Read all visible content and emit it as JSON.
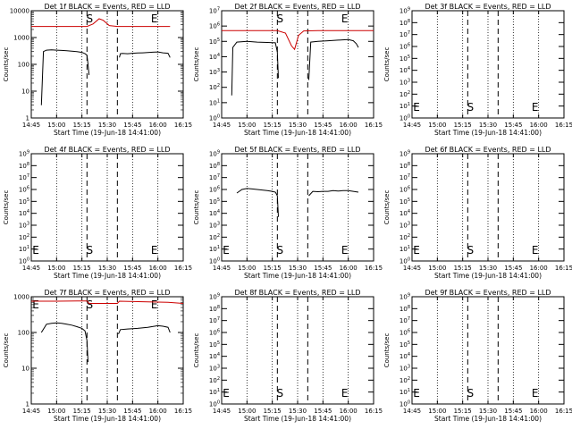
{
  "x_ticks": [
    "14:45",
    "15:00",
    "15:15",
    "15:30",
    "15:45",
    "16:00",
    "16:15"
  ],
  "x_label": "Start Time (19-Jun-18 14:41:00)",
  "y_label": "Counts/sec",
  "marker_S": "S",
  "marker_E": "E",
  "chart_data": [
    {
      "type": "line",
      "title": "Det 1f BLACK = Events, RED = LLD",
      "ylog": true,
      "ylim": [
        1,
        10000
      ],
      "yticks": [
        "1",
        "10",
        "100",
        "1000",
        "10000"
      ],
      "dashed_x": [
        15.3,
        15.6
      ],
      "markers": {
        "S": 15.3,
        "E": 16.0
      },
      "series": [
        {
          "name": "Events",
          "color": "#000000",
          "points": [
            [
              14.85,
              3
            ],
            [
              14.87,
              300
            ],
            [
              14.9,
              340
            ],
            [
              14.95,
              350
            ],
            [
              15.0,
              340
            ],
            [
              15.05,
              330
            ],
            [
              15.1,
              320
            ],
            [
              15.15,
              310
            ],
            [
              15.2,
              300
            ],
            [
              15.25,
              280
            ],
            [
              15.28,
              250
            ],
            [
              15.3,
              220
            ],
            [
              15.31,
              100
            ],
            [
              15.32,
              40
            ],
            null,
            [
              15.62,
              180
            ],
            [
              15.63,
              250
            ],
            [
              15.65,
              255
            ],
            [
              15.7,
              250
            ],
            [
              15.75,
              260
            ],
            [
              15.8,
              265
            ],
            [
              15.85,
              270
            ],
            [
              15.9,
              275
            ],
            [
              15.95,
              285
            ],
            [
              16.0,
              290
            ],
            [
              16.05,
              270
            ],
            [
              16.1,
              260
            ],
            [
              16.12,
              180
            ]
          ]
        },
        {
          "name": "LLD",
          "color": "#cc0000",
          "points": [
            [
              14.75,
              2600
            ],
            [
              15.0,
              2600
            ],
            [
              15.2,
              2600
            ],
            [
              15.3,
              2600
            ],
            [
              15.36,
              3200
            ],
            [
              15.42,
              5000
            ],
            [
              15.46,
              4400
            ],
            [
              15.52,
              2800
            ],
            [
              15.6,
              2600
            ],
            [
              15.8,
              2600
            ],
            [
              16.0,
              2600
            ],
            [
              16.12,
              2600
            ]
          ]
        }
      ]
    },
    {
      "type": "line",
      "title": "Det 2f BLACK = Events, RED = LLD",
      "ylog": true,
      "ylim": [
        1,
        10000000
      ],
      "yticks": [
        "10^0",
        "10^1",
        "10^2",
        "10^3",
        "10^4",
        "10^5",
        "10^6",
        "10^7"
      ],
      "dashed_x": [
        15.3,
        15.6
      ],
      "markers": {
        "S": 15.3,
        "E": 16.0
      },
      "series": [
        {
          "name": "Events",
          "color": "#000000",
          "points": [
            [
              14.85,
              30
            ],
            [
              14.86,
              40000
            ],
            [
              14.9,
              90000
            ],
            [
              15.0,
              100000
            ],
            [
              15.1,
              90000
            ],
            [
              15.2,
              85000
            ],
            [
              15.28,
              80000
            ],
            [
              15.3,
              20000
            ],
            [
              15.31,
              400
            ],
            null,
            [
              15.61,
              300
            ],
            [
              15.63,
              90000
            ],
            [
              15.7,
              100000
            ],
            [
              15.8,
              110000
            ],
            [
              15.9,
              120000
            ],
            [
              16.0,
              130000
            ],
            [
              16.05,
              110000
            ],
            [
              16.08,
              70000
            ],
            [
              16.1,
              40000
            ]
          ]
        },
        {
          "name": "LLD",
          "color": "#cc0000",
          "points": [
            [
              14.75,
              500000
            ],
            [
              15.0,
              500000
            ],
            [
              15.3,
              500000
            ],
            [
              15.38,
              350000
            ],
            [
              15.44,
              50000
            ],
            [
              15.47,
              30000
            ],
            [
              15.51,
              250000
            ],
            [
              15.56,
              480000
            ],
            [
              15.7,
              500000
            ],
            [
              16.0,
              500000
            ],
            [
              16.25,
              500000
            ]
          ]
        }
      ]
    },
    {
      "type": "line",
      "title": "Det 3f BLACK = Events, RED = LLD",
      "ylog": true,
      "ylim": [
        1,
        1000000000
      ],
      "yticks": [
        "10^0",
        "10^1",
        "10^2",
        "10^3",
        "10^4",
        "10^5",
        "10^6",
        "10^7",
        "10^8",
        "10^9"
      ],
      "dashed_x": [
        15.3,
        15.6
      ],
      "markers": {
        "S": 15.3,
        "E": 16.0,
        "E_left": 14.75
      },
      "series": []
    },
    {
      "type": "line",
      "title": "Det 4f BLACK = Events, RED = LLD",
      "ylog": true,
      "ylim": [
        1,
        1000000000
      ],
      "yticks": [
        "10^0",
        "10^1",
        "10^2",
        "10^3",
        "10^4",
        "10^5",
        "10^6",
        "10^7",
        "10^8",
        "10^9"
      ],
      "dashed_x": [
        15.3,
        15.6
      ],
      "markers": {
        "S": 15.3,
        "E": 16.0,
        "E_left": 14.75
      },
      "series": []
    },
    {
      "type": "line",
      "title": "Det 5f BLACK = Events, RED = LLD",
      "ylog": true,
      "ylim": [
        1,
        1000000000
      ],
      "yticks": [
        "10^0",
        "10^1",
        "10^2",
        "10^3",
        "10^4",
        "10^5",
        "10^6",
        "10^7",
        "10^8",
        "10^9"
      ],
      "dashed_x": [
        15.3,
        15.6
      ],
      "markers": {
        "S": 15.3,
        "E": 16.0,
        "E_left": 14.75
      },
      "series": [
        {
          "name": "Events",
          "color": "#000000",
          "points": [
            [
              14.9,
              500000
            ],
            [
              14.95,
              1000000
            ],
            [
              15.0,
              1200000
            ],
            [
              15.05,
              1100000
            ],
            [
              15.1,
              1000000
            ],
            [
              15.15,
              900000
            ],
            [
              15.2,
              800000
            ],
            [
              15.25,
              700000
            ],
            [
              15.28,
              600000
            ],
            [
              15.3,
              300000
            ],
            [
              15.31,
              5000
            ],
            null,
            [
              15.61,
              300000
            ],
            [
              15.65,
              700000
            ],
            [
              15.7,
              650000
            ],
            [
              15.75,
              700000
            ],
            [
              15.8,
              700000
            ],
            [
              15.85,
              800000
            ],
            [
              15.9,
              750000
            ],
            [
              15.95,
              800000
            ],
            [
              16.0,
              800000
            ],
            [
              16.05,
              700000
            ],
            [
              16.1,
              600000
            ]
          ]
        }
      ]
    },
    {
      "type": "line",
      "title": "Det 6f BLACK = Events, RED = LLD",
      "ylog": true,
      "ylim": [
        1,
        1000000000
      ],
      "yticks": [
        "10^0",
        "10^1",
        "10^2",
        "10^3",
        "10^4",
        "10^5",
        "10^6",
        "10^7",
        "10^8",
        "10^9"
      ],
      "dashed_x": [
        15.3,
        15.6
      ],
      "markers": {
        "S": 15.3,
        "E": 16.0,
        "E_left": 14.75
      },
      "series": []
    },
    {
      "type": "line",
      "title": "Det 7f BLACK = Events, RED = LLD",
      "ylog": true,
      "ylim": [
        1,
        1000
      ],
      "yticks": [
        "1",
        "10",
        "100",
        "1000"
      ],
      "dashed_x": [
        15.3,
        15.6
      ],
      "markers": {
        "S": 15.3,
        "E": 16.0,
        "E_left": 14.75
      },
      "series": [
        {
          "name": "Events",
          "color": "#000000",
          "points": [
            [
              14.85,
              100
            ],
            [
              14.9,
              170
            ],
            [
              14.95,
              180
            ],
            [
              15.0,
              185
            ],
            [
              15.05,
              180
            ],
            [
              15.1,
              170
            ],
            [
              15.15,
              160
            ],
            [
              15.2,
              145
            ],
            [
              15.25,
              130
            ],
            [
              15.28,
              110
            ],
            [
              15.3,
              60
            ],
            [
              15.31,
              15
            ],
            null,
            [
              15.61,
              90
            ],
            [
              15.63,
              120
            ],
            [
              15.7,
              125
            ],
            [
              15.8,
              130
            ],
            [
              15.9,
              140
            ],
            [
              16.0,
              155
            ],
            [
              16.05,
              150
            ],
            [
              16.1,
              140
            ],
            [
              16.12,
              100
            ]
          ]
        },
        {
          "name": "LLD",
          "color": "#cc0000",
          "points": [
            [
              14.75,
              750
            ],
            [
              15.0,
              750
            ],
            [
              15.2,
              760
            ],
            [
              15.3,
              760
            ],
            [
              15.32,
              650
            ],
            [
              15.6,
              650
            ],
            [
              15.62,
              750
            ],
            [
              15.9,
              720
            ],
            [
              16.1,
              700
            ],
            [
              16.25,
              650
            ]
          ]
        }
      ]
    },
    {
      "type": "line",
      "title": "Det 8f BLACK = Events, RED = LLD",
      "ylog": true,
      "ylim": [
        1,
        1000000000
      ],
      "yticks": [
        "10^0",
        "10^1",
        "10^2",
        "10^3",
        "10^4",
        "10^5",
        "10^6",
        "10^7",
        "10^8",
        "10^9"
      ],
      "dashed_x": [
        15.3,
        15.6
      ],
      "markers": {
        "S": 15.3,
        "E": 16.0,
        "E_left": 14.75
      },
      "series": []
    },
    {
      "type": "line",
      "title": "Det 9f BLACK = Events, RED = LLD",
      "ylog": true,
      "ylim": [
        1,
        1000000000
      ],
      "yticks": [
        "10^0",
        "10^1",
        "10^2",
        "10^3",
        "10^4",
        "10^5",
        "10^6",
        "10^7",
        "10^8",
        "10^9"
      ],
      "dashed_x": [
        15.3,
        15.6
      ],
      "markers": {
        "S": 15.3,
        "E": 16.0,
        "E_left": 14.75
      },
      "series": []
    }
  ]
}
